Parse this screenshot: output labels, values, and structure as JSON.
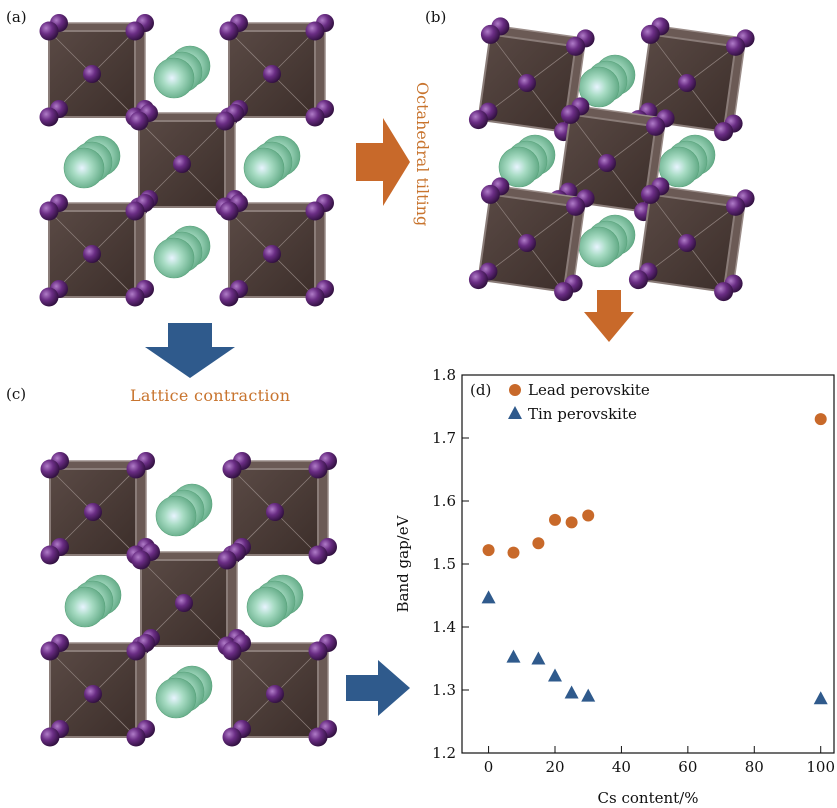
{
  "figure": {
    "panel_labels": [
      "(a)",
      "(b)",
      "(c)",
      "(d)"
    ],
    "arrow_labels": {
      "tilting": "Octahedral tilting",
      "contraction": "Lattice contraction"
    },
    "colors": {
      "octahedron": "#4a3a35",
      "octahedron_edge": "#8a7c78",
      "iodide": "#5a2670",
      "cation": "#7cc79a",
      "arrow_orange": "#c8692a",
      "arrow_blue": "#2f5a8c"
    }
  },
  "chart_data": {
    "type": "scatter",
    "panel": "(d)",
    "xlabel": "Cs content/%",
    "ylabel": "Band gap/eV",
    "xlim": [
      -8,
      104
    ],
    "ylim": [
      1.2,
      1.8
    ],
    "xticks": [
      "0",
      "20",
      "40",
      "60",
      "80",
      "100"
    ],
    "yticks": [
      "1.2",
      "1.3",
      "1.4",
      "1.5",
      "1.6",
      "1.7",
      "1.8"
    ],
    "legend_position": "top-left",
    "series": [
      {
        "name": "Lead perovskite",
        "marker": "circle",
        "color": "#c8692a",
        "x": [
          0,
          7.5,
          15,
          20,
          25,
          30,
          100
        ],
        "y": [
          1.522,
          1.518,
          1.533,
          1.57,
          1.566,
          1.577,
          1.73
        ]
      },
      {
        "name": "Tin perovskite",
        "marker": "triangle",
        "color": "#2f5a8c",
        "x": [
          0,
          7.5,
          15,
          20,
          25,
          30,
          100
        ],
        "y": [
          1.447,
          1.353,
          1.35,
          1.323,
          1.296,
          1.291,
          1.287
        ]
      }
    ]
  }
}
